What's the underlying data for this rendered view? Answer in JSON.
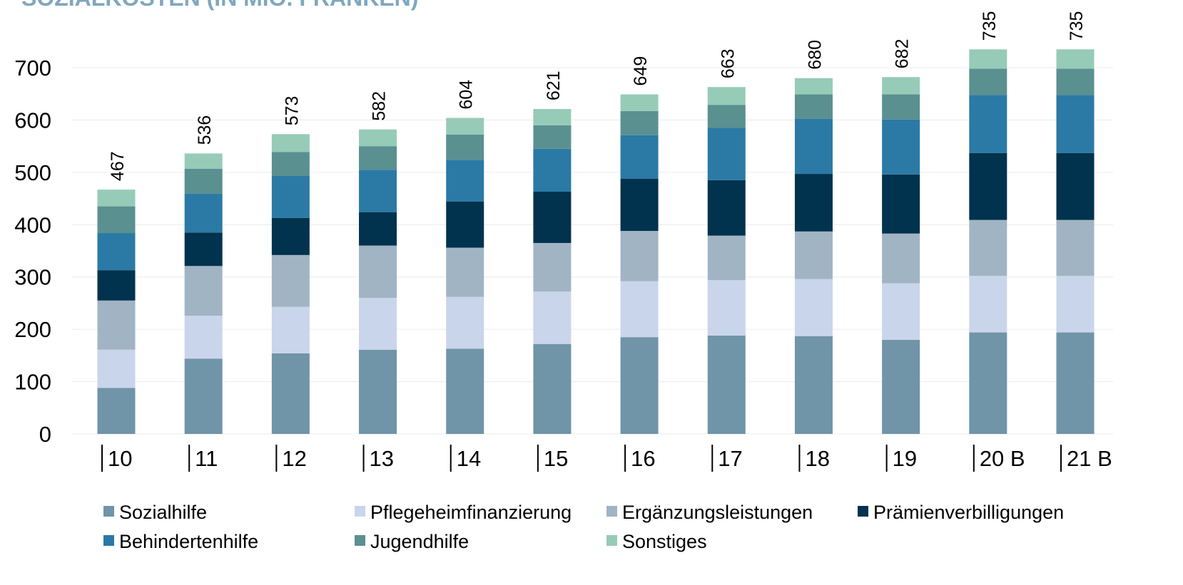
{
  "chart_data": {
    "type": "stacked_bar",
    "title": "SOZIALKOSTEN (IN MIO. FRANKEN)",
    "categories": [
      "10",
      "11",
      "12",
      "13",
      "14",
      "15",
      "16",
      "17",
      "18",
      "19",
      "20 B",
      "21 B"
    ],
    "series": [
      {
        "name": "Sozialhilfe",
        "color": "#7094a8",
        "values": [
          88,
          144,
          154,
          161,
          163,
          172,
          185,
          188,
          187,
          180,
          194,
          194
        ]
      },
      {
        "name": "Pflegeheimfinanzierung",
        "color": "#c9d5ea",
        "values": [
          73,
          82,
          89,
          99,
          99,
          100,
          107,
          106,
          109,
          108,
          108,
          108
        ]
      },
      {
        "name": "Ergänzungsleistungen",
        "color": "#a0b4c4",
        "values": [
          94,
          95,
          99,
          100,
          94,
          93,
          96,
          85,
          91,
          95,
          107,
          107
        ]
      },
      {
        "name": "Prämienverbilligungen",
        "color": "#01324e",
        "values": [
          58,
          64,
          71,
          64,
          88,
          98,
          100,
          106,
          110,
          113,
          128,
          128
        ]
      },
      {
        "name": "Behindertenhilfe",
        "color": "#2a7aa5",
        "values": [
          71,
          74,
          80,
          81,
          80,
          82,
          83,
          100,
          105,
          105,
          111,
          111
        ]
      },
      {
        "name": "Jugendhilfe",
        "color": "#5a9090",
        "values": [
          51,
          48,
          46,
          45,
          48,
          45,
          46,
          44,
          47,
          48,
          50,
          50
        ]
      },
      {
        "name": "Sonstiges",
        "color": "#96cbb8",
        "values": [
          32,
          29,
          34,
          32,
          32,
          31,
          32,
          34,
          31,
          33,
          37,
          37
        ]
      }
    ],
    "totals": [
      467,
      536,
      573,
      582,
      604,
      621,
      649,
      663,
      680,
      682,
      735,
      735
    ],
    "ylim": [
      0,
      700
    ],
    "yticks": [
      0,
      100,
      200,
      300,
      400,
      500,
      600,
      700
    ],
    "grid": true
  }
}
